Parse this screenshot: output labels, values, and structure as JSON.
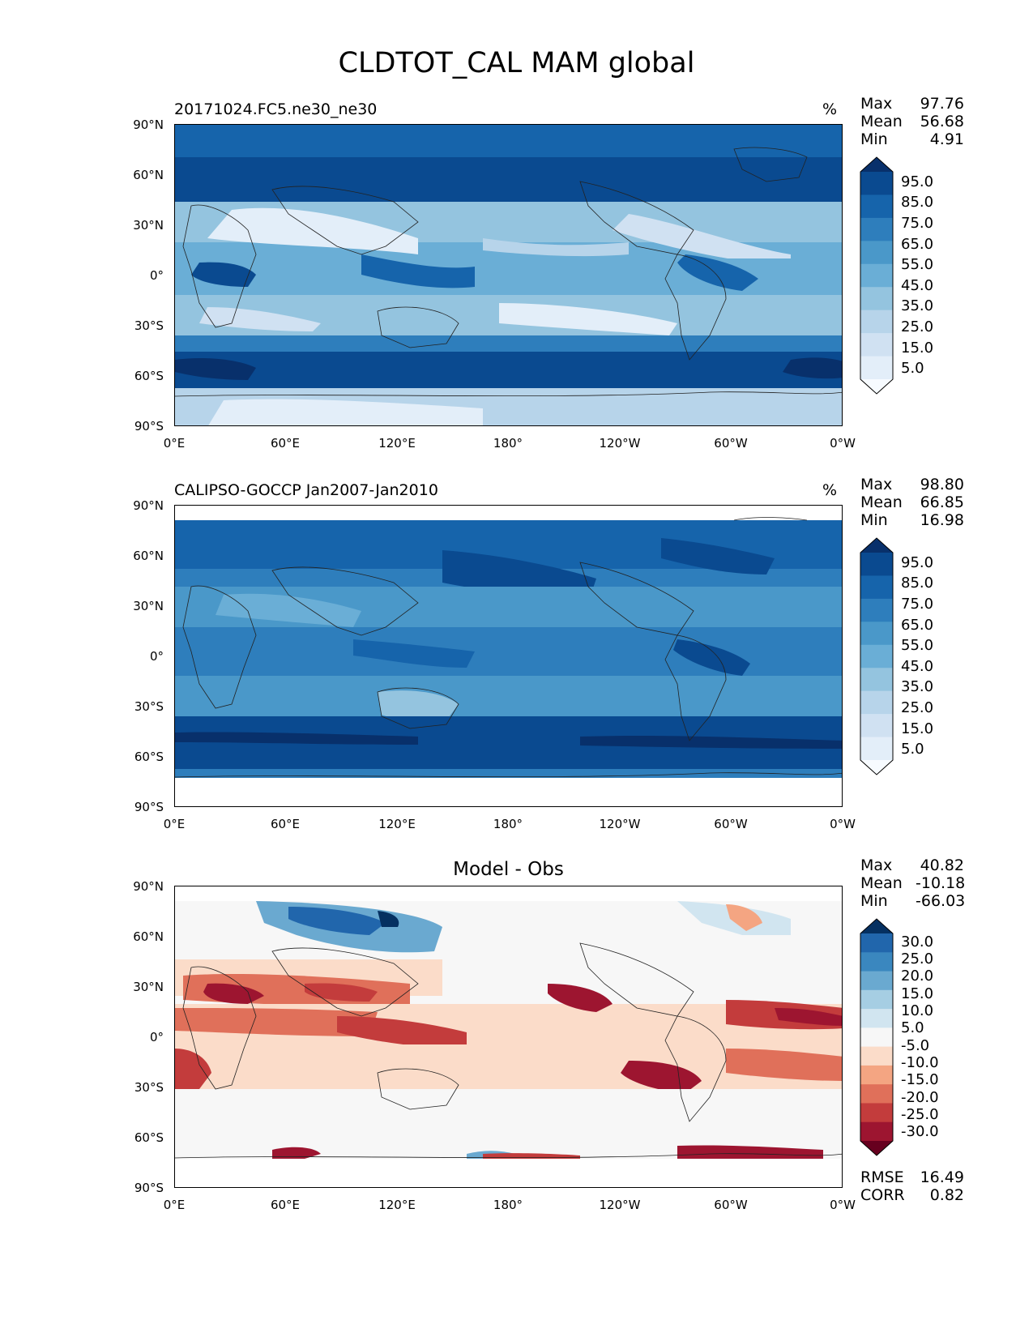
{
  "title": "CLDTOT_CAL MAM global",
  "lat_ticks": [
    "90°N",
    "60°N",
    "30°N",
    "0°",
    "30°S",
    "60°S",
    "90°S"
  ],
  "lon_ticks": [
    "0°E",
    "60°E",
    "120°E",
    "180°",
    "120°W",
    "60°W",
    "0°W"
  ],
  "panels": [
    {
      "title": "20171024.FC5.ne30_ne30",
      "units": "%",
      "stats": [
        {
          "label": "Max",
          "value": "97.76"
        },
        {
          "label": "Mean",
          "value": "56.68"
        },
        {
          "label": "Min",
          "value": "4.91"
        }
      ],
      "colorbar": {
        "labels": [
          "95.0",
          "85.0",
          "75.0",
          "65.0",
          "55.0",
          "45.0",
          "35.0",
          "25.0",
          "15.0",
          "5.0"
        ],
        "colors": [
          "#08306b",
          "#0a4a90",
          "#1664ab",
          "#2e7ebc",
          "#4a98c9",
          "#6aaed6",
          "#94c4df",
          "#b7d4ea",
          "#d0e1f2",
          "#e3eef9",
          "#f7fbff"
        ]
      }
    },
    {
      "title": "CALIPSO-GOCCP Jan2007-Jan2010",
      "units": "%",
      "stats": [
        {
          "label": "Max",
          "value": "98.80"
        },
        {
          "label": "Mean",
          "value": "66.85"
        },
        {
          "label": "Min",
          "value": "16.98"
        }
      ],
      "colorbar": {
        "labels": [
          "95.0",
          "85.0",
          "75.0",
          "65.0",
          "55.0",
          "45.0",
          "35.0",
          "25.0",
          "15.0",
          "5.0"
        ],
        "colors": [
          "#08306b",
          "#0a4a90",
          "#1664ab",
          "#2e7ebc",
          "#4a98c9",
          "#6aaed6",
          "#94c4df",
          "#b7d4ea",
          "#d0e1f2",
          "#e3eef9",
          "#f7fbff"
        ]
      }
    },
    {
      "title": "Model - Obs",
      "units": "",
      "stats": [
        {
          "label": "Max",
          "value": "40.82"
        },
        {
          "label": "Mean",
          "value": "-10.18"
        },
        {
          "label": "Min",
          "value": "-66.03"
        }
      ],
      "extra_stats": [
        {
          "label": "RMSE",
          "value": "16.49"
        },
        {
          "label": "CORR",
          "value": "0.82"
        }
      ],
      "colorbar": {
        "labels": [
          "30.0",
          "25.0",
          "20.0",
          "15.0",
          "10.0",
          "5.0",
          "-5.0",
          "-10.0",
          "-15.0",
          "-20.0",
          "-25.0",
          "-30.0"
        ],
        "colors": [
          "#053061",
          "#2166ac",
          "#3a87bf",
          "#6aa9d0",
          "#a6cee3",
          "#d1e5f0",
          "#f7f7f7",
          "#fbdcc9",
          "#f4a582",
          "#e0705a",
          "#c33c3c",
          "#9d1530",
          "#67001f"
        ]
      }
    }
  ]
}
